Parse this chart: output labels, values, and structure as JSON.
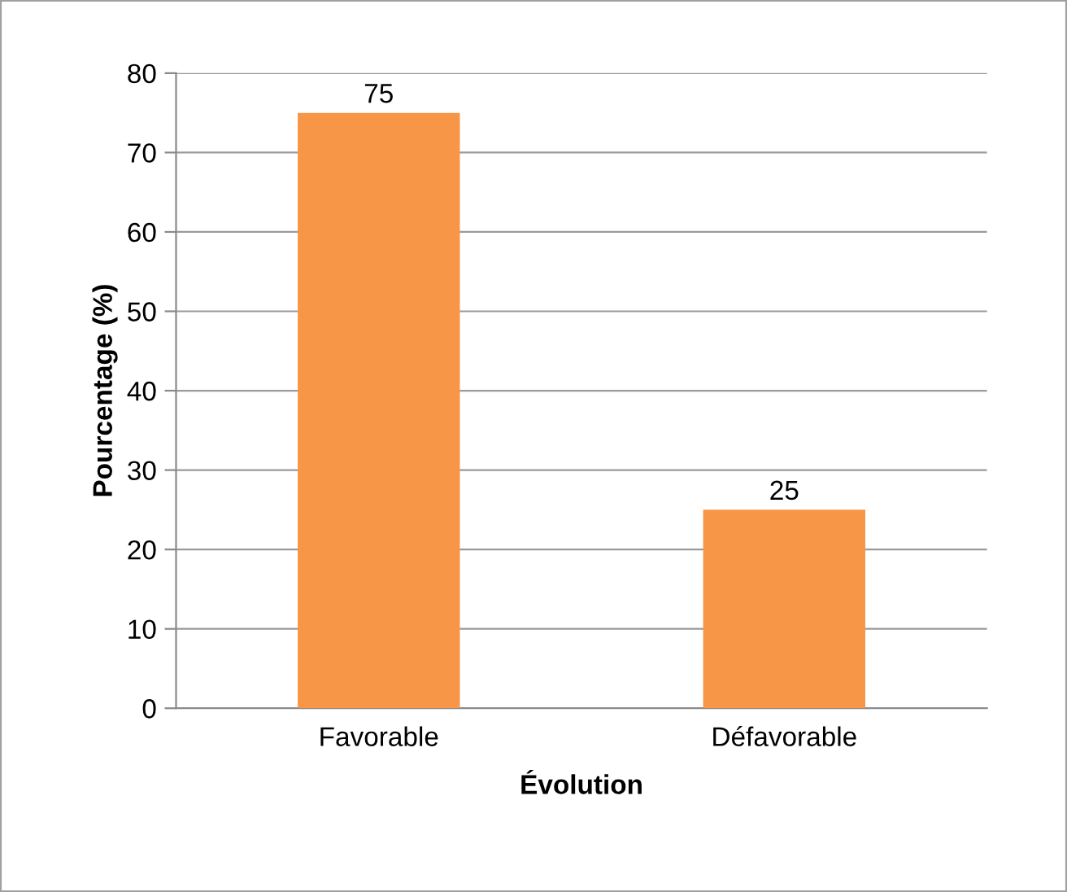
{
  "chart_data": {
    "type": "bar",
    "xlabel": "Évolution",
    "ylabel": "Pourcentage (%)",
    "categories": [
      "Favorable",
      "Défavorable"
    ],
    "values": [
      75,
      25
    ],
    "color": "#f79646",
    "ylim": [
      0,
      80
    ],
    "yticks": [
      0,
      10,
      20,
      30,
      40,
      50,
      60,
      70,
      80
    ],
    "grid": "y",
    "data_labels": true
  }
}
